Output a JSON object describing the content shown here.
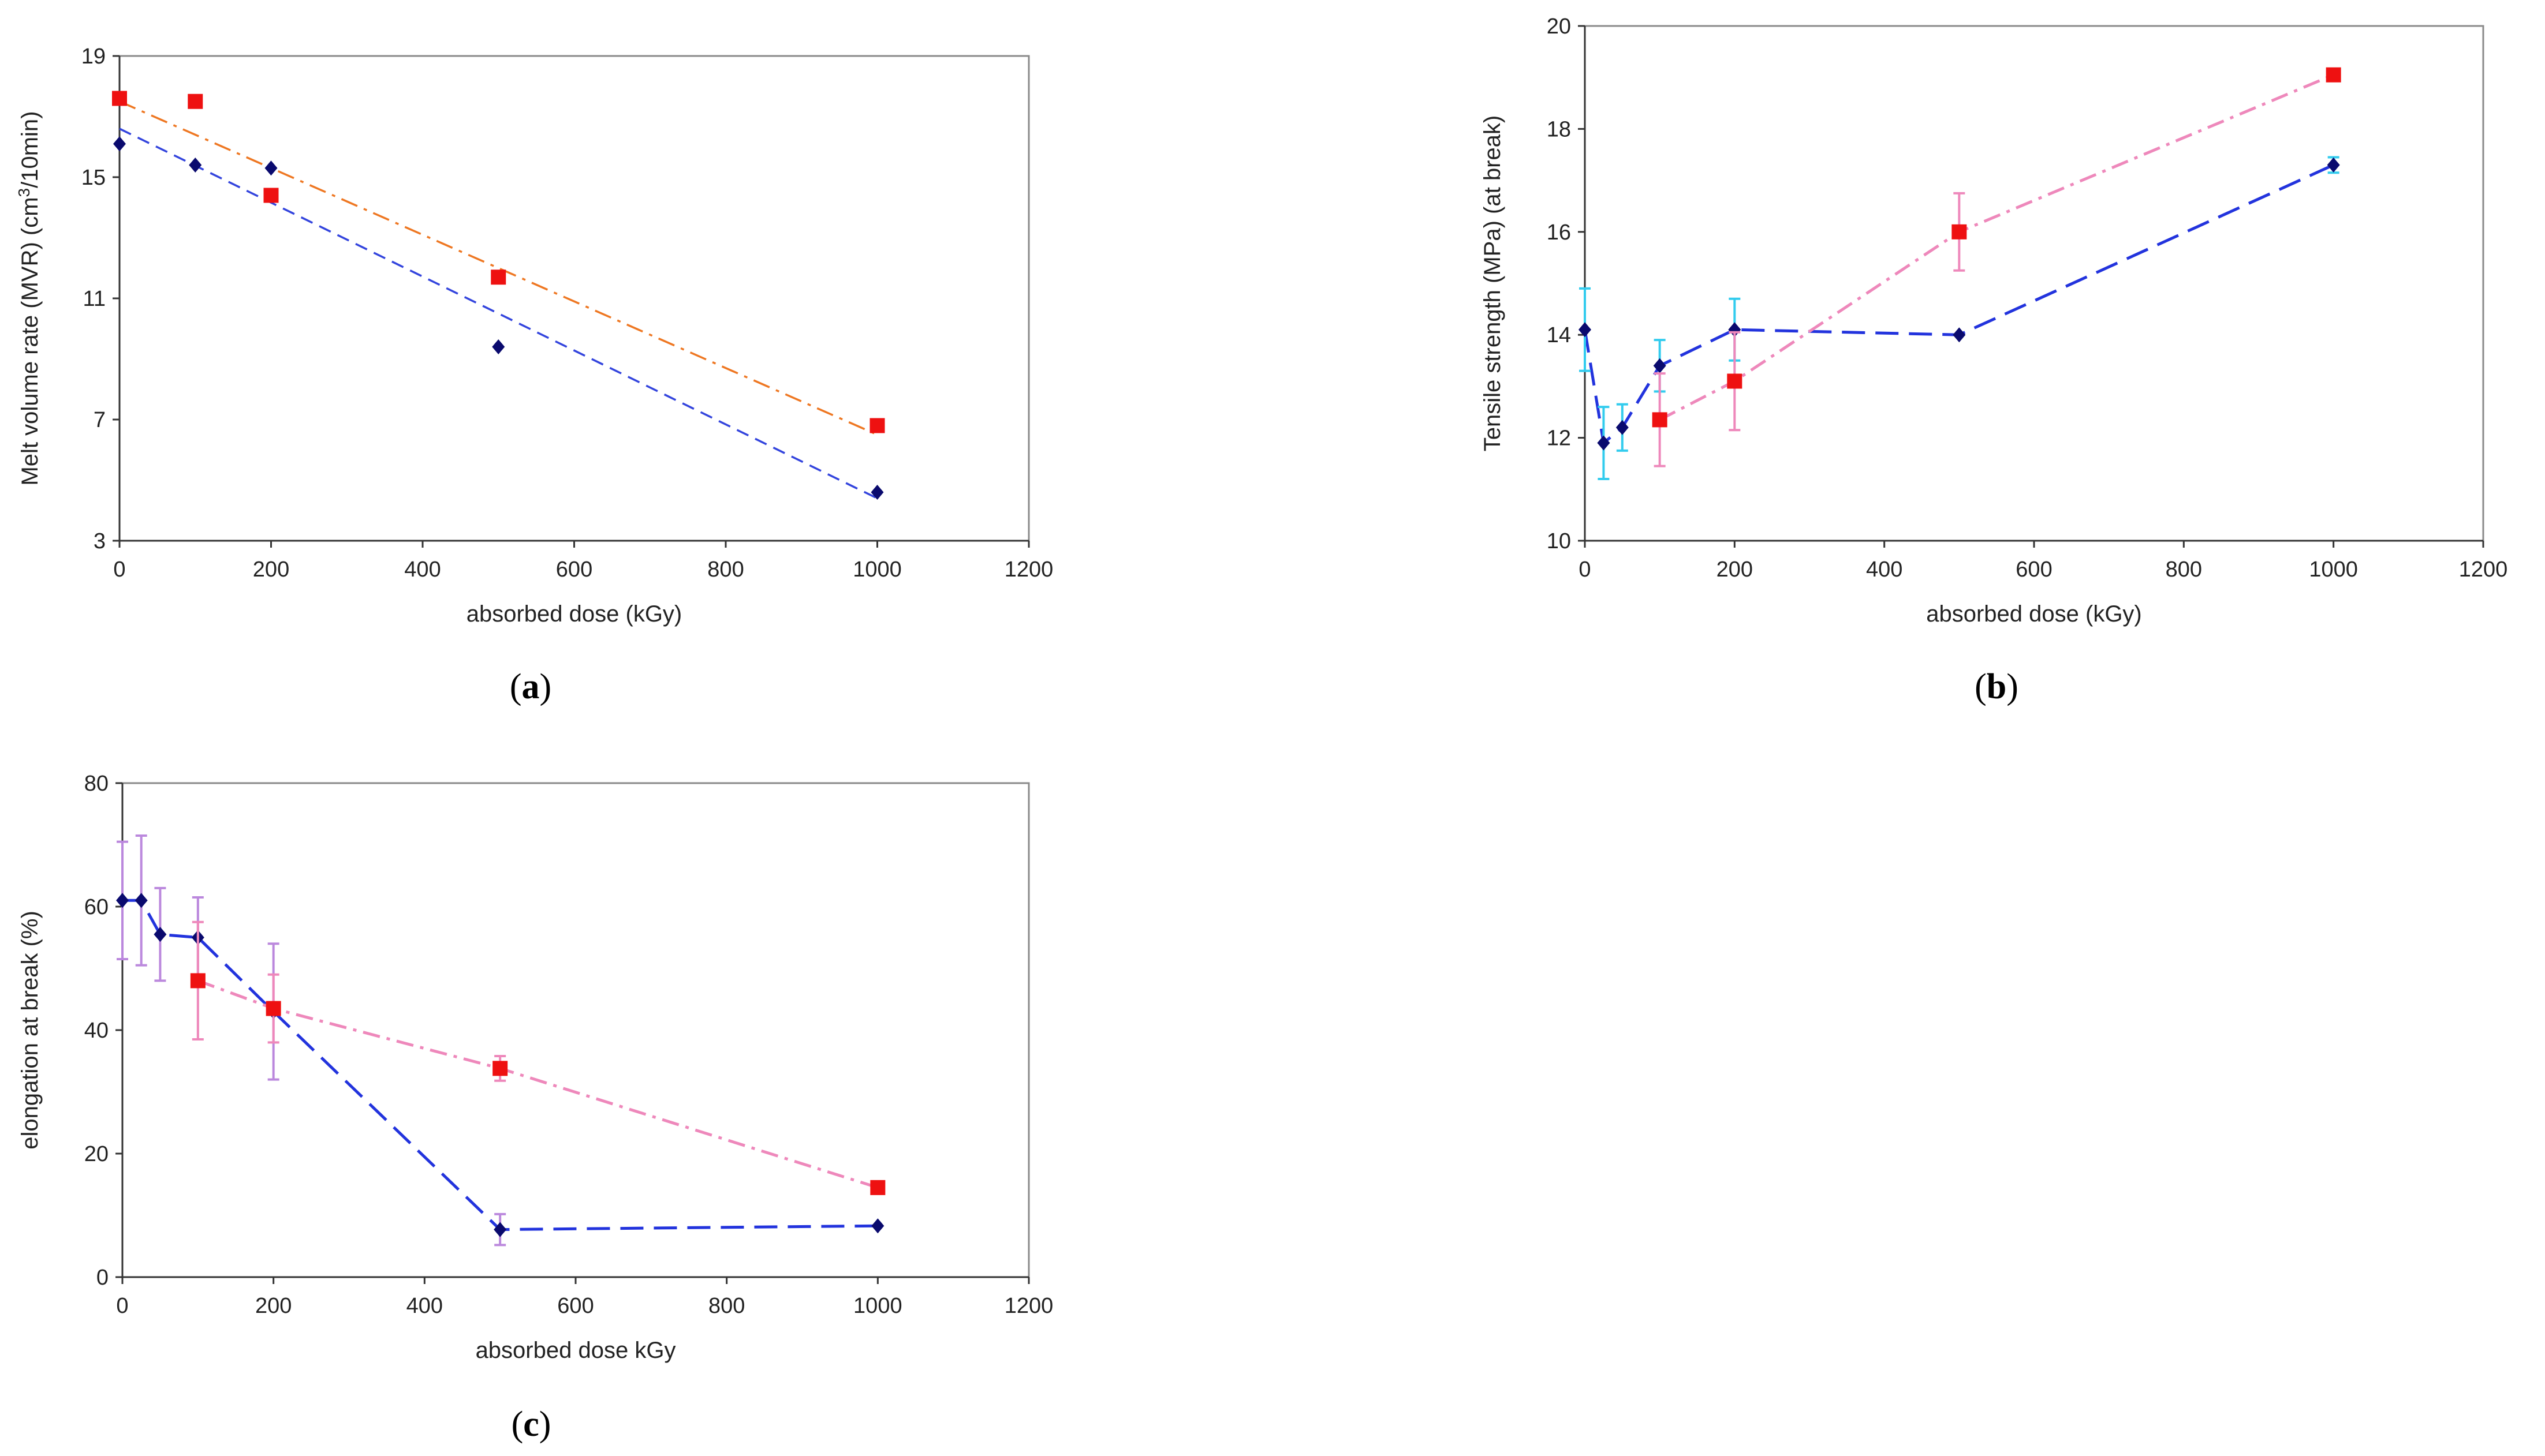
{
  "chart_data": [
    {
      "id": "a",
      "type": "scatter",
      "caption_letter": "a",
      "title": "",
      "xlabel": "absorbed dose (kGy)",
      "ylabel_parts": [
        "Melt volume rate (MVR) (cm",
        "3",
        "/10min)"
      ],
      "xlim": [
        0,
        1200
      ],
      "ylim": [
        3,
        19
      ],
      "xticks": [
        0,
        200,
        400,
        600,
        800,
        1000,
        1200
      ],
      "yticks": [
        3,
        7,
        11,
        15,
        19
      ],
      "grid": false,
      "series": [
        {
          "name": "blue diamonds",
          "marker": "diamond",
          "color": "#0a0a6e",
          "x": [
            0,
            100,
            200,
            500,
            1000
          ],
          "y": [
            16.1,
            15.4,
            15.3,
            9.4,
            4.6
          ],
          "errors": []
        },
        {
          "name": "red squares",
          "marker": "square",
          "color": "#ee1111",
          "x": [
            0,
            100,
            200,
            500,
            1000
          ],
          "y": [
            17.6,
            17.5,
            14.4,
            11.7,
            6.8
          ],
          "errors": []
        }
      ],
      "lines": [
        {
          "name": "blue trend line",
          "color": "#3344dd",
          "dash": "dash",
          "x": [
            0,
            1000
          ],
          "y": [
            16.6,
            4.4
          ]
        },
        {
          "name": "orange trend line",
          "color": "#ee7722",
          "dash": "dashdot",
          "x": [
            0,
            1000
          ],
          "y": [
            17.5,
            6.5
          ]
        }
      ]
    },
    {
      "id": "b",
      "type": "line",
      "caption_letter": "b",
      "title": "",
      "xlabel": "absorbed dose (kGy)",
      "ylabel_parts": [
        "Tensile strength (MPa) (at break)",
        "",
        ""
      ],
      "xlim": [
        0,
        1200
      ],
      "ylim": [
        10,
        20
      ],
      "xticks": [
        0,
        200,
        400,
        600,
        800,
        1000,
        1200
      ],
      "yticks": [
        10,
        12,
        14,
        16,
        18,
        20
      ],
      "grid": false,
      "series": [
        {
          "name": "blue diamonds",
          "marker": "diamond",
          "color": "#0a0a6e",
          "line_color": "#2233dd",
          "dash": "longdash",
          "error_color": "#33ccee",
          "x": [
            0,
            25,
            50,
            100,
            200,
            500,
            1000
          ],
          "y": [
            14.1,
            11.9,
            12.2,
            13.4,
            14.1,
            14.0,
            17.3
          ],
          "errors": [
            0.8,
            0.7,
            0.45,
            0.5,
            0.6,
            0,
            0.15
          ]
        },
        {
          "name": "red squares",
          "marker": "square",
          "color": "#ee1111",
          "line_color": "#ee88bb",
          "dash": "dashdot",
          "error_color": "#ee88bb",
          "x": [
            100,
            200,
            500,
            1000
          ],
          "y": [
            12.35,
            13.1,
            16.0,
            19.05
          ],
          "errors": [
            0.9,
            0.95,
            0.75,
            0
          ]
        }
      ],
      "lines": []
    },
    {
      "id": "c",
      "type": "line",
      "caption_letter": "c",
      "title": "",
      "xlabel": "absorbed dose kGy",
      "ylabel_parts": [
        "elongation at break (%)",
        "",
        ""
      ],
      "xlim": [
        0,
        1200
      ],
      "ylim": [
        0,
        80
      ],
      "xticks": [
        0,
        200,
        400,
        600,
        800,
        1000,
        1200
      ],
      "yticks": [
        0,
        20,
        40,
        60,
        80
      ],
      "grid": false,
      "series": [
        {
          "name": "blue diamonds",
          "marker": "diamond",
          "color": "#0a0a6e",
          "line_color": "#2233dd",
          "dash": "longdash",
          "error_color": "#bb88dd",
          "x": [
            0,
            25,
            50,
            100,
            200,
            500,
            1000
          ],
          "y": [
            61,
            61,
            55.5,
            55,
            43,
            7.7,
            8.3
          ],
          "errors": [
            9.5,
            10.5,
            7.5,
            6.5,
            11,
            2.5,
            0
          ]
        },
        {
          "name": "red squares",
          "marker": "square",
          "color": "#ee1111",
          "line_color": "#ee88bb",
          "dash": "dashdot",
          "error_color": "#ee88bb",
          "x": [
            100,
            200,
            500,
            1000
          ],
          "y": [
            48,
            43.5,
            33.8,
            14.5
          ],
          "errors": [
            9.5,
            5.5,
            2,
            0
          ]
        }
      ],
      "lines": []
    }
  ]
}
